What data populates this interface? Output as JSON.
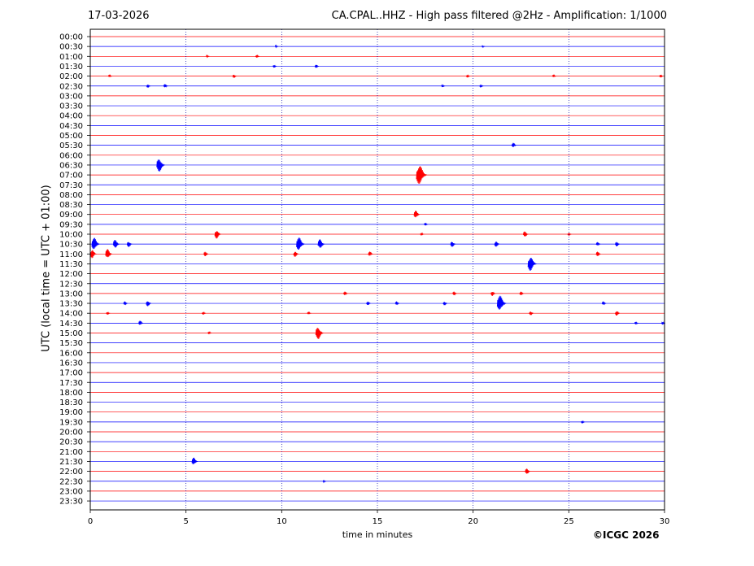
{
  "header": {
    "date": "17-03-2026",
    "title": "CA.CPAL..HHZ - High pass filtered @2Hz - Amplification: 1/1000"
  },
  "footer": {
    "copyright": "©ICGC 2026"
  },
  "chart_data": {
    "type": "line",
    "title": "CA.CPAL..HHZ - High pass filtered @2Hz - Amplification: 1/1000",
    "xlabel": "time in minutes",
    "ylabel": "UTC (local time = UTC + 01:00)",
    "xlim": [
      0,
      30
    ],
    "x_ticks": [
      0,
      5,
      10,
      15,
      20,
      25,
      30
    ],
    "vertical_grid": "dotted blue at each 5 minutes",
    "row_labels": [
      "00:00",
      "00:30",
      "01:00",
      "01:30",
      "02:00",
      "02:30",
      "03:00",
      "03:30",
      "04:00",
      "04:30",
      "05:00",
      "05:30",
      "06:00",
      "06:30",
      "07:00",
      "07:30",
      "08:00",
      "08:30",
      "09:00",
      "09:30",
      "10:00",
      "10:30",
      "11:00",
      "11:30",
      "12:00",
      "12:30",
      "13:00",
      "13:30",
      "14:00",
      "14:30",
      "15:00",
      "15:30",
      "16:00",
      "16:30",
      "17:00",
      "17:30",
      "18:00",
      "18:30",
      "19:00",
      "19:30",
      "20:00",
      "20:30",
      "21:00",
      "21:30",
      "22:00",
      "22:30",
      "23:00",
      "23:30"
    ],
    "colors": {
      "odd_row": "#ff0000",
      "even_row": "#0000ff",
      "grid": "#0000aa"
    },
    "events": [
      {
        "row": 1,
        "minute": 9.7,
        "amp": 0.2
      },
      {
        "row": 1,
        "minute": 20.5,
        "amp": 0.15
      },
      {
        "row": 2,
        "minute": 8.7,
        "amp": 0.3
      },
      {
        "row": 2,
        "minute": 6.1,
        "amp": 0.2
      },
      {
        "row": 3,
        "minute": 9.6,
        "amp": 0.3
      },
      {
        "row": 3,
        "minute": 11.8,
        "amp": 0.35
      },
      {
        "row": 4,
        "minute": 1.0,
        "amp": 0.3
      },
      {
        "row": 4,
        "minute": 7.5,
        "amp": 0.35
      },
      {
        "row": 4,
        "minute": 19.7,
        "amp": 0.3
      },
      {
        "row": 4,
        "minute": 24.2,
        "amp": 0.3
      },
      {
        "row": 4,
        "minute": 29.8,
        "amp": 0.3
      },
      {
        "row": 5,
        "minute": 3.0,
        "amp": 0.35
      },
      {
        "row": 5,
        "minute": 3.9,
        "amp": 0.4
      },
      {
        "row": 5,
        "minute": 18.4,
        "amp": 0.25
      },
      {
        "row": 5,
        "minute": 20.4,
        "amp": 0.3
      },
      {
        "row": 11,
        "minute": 22.1,
        "amp": 0.5
      },
      {
        "row": 13,
        "minute": 3.6,
        "amp": 1.4
      },
      {
        "row": 14,
        "minute": 17.2,
        "amp": 2.0
      },
      {
        "row": 18,
        "minute": 17.0,
        "amp": 0.8
      },
      {
        "row": 19,
        "minute": 17.5,
        "amp": 0.3
      },
      {
        "row": 20,
        "minute": 6.6,
        "amp": 0.9
      },
      {
        "row": 20,
        "minute": 17.3,
        "amp": 0.3
      },
      {
        "row": 20,
        "minute": 22.7,
        "amp": 0.6
      },
      {
        "row": 20,
        "minute": 25.0,
        "amp": 0.3
      },
      {
        "row": 21,
        "minute": 0.2,
        "amp": 1.3
      },
      {
        "row": 21,
        "minute": 1.3,
        "amp": 0.9
      },
      {
        "row": 21,
        "minute": 2.0,
        "amp": 0.6
      },
      {
        "row": 21,
        "minute": 10.9,
        "amp": 1.4
      },
      {
        "row": 21,
        "minute": 12.0,
        "amp": 1.0
      },
      {
        "row": 21,
        "minute": 18.9,
        "amp": 0.6
      },
      {
        "row": 21,
        "minute": 21.2,
        "amp": 0.6
      },
      {
        "row": 21,
        "minute": 26.5,
        "amp": 0.4
      },
      {
        "row": 21,
        "minute": 27.5,
        "amp": 0.5
      },
      {
        "row": 22,
        "minute": 0.1,
        "amp": 0.9
      },
      {
        "row": 22,
        "minute": 0.9,
        "amp": 1.0
      },
      {
        "row": 22,
        "minute": 6.0,
        "amp": 0.5
      },
      {
        "row": 22,
        "minute": 10.7,
        "amp": 0.6
      },
      {
        "row": 22,
        "minute": 14.6,
        "amp": 0.5
      },
      {
        "row": 22,
        "minute": 26.5,
        "amp": 0.5
      },
      {
        "row": 23,
        "minute": 23.0,
        "amp": 1.5
      },
      {
        "row": 26,
        "minute": 13.3,
        "amp": 0.4
      },
      {
        "row": 26,
        "minute": 19.0,
        "amp": 0.4
      },
      {
        "row": 26,
        "minute": 21.0,
        "amp": 0.5
      },
      {
        "row": 26,
        "minute": 22.5,
        "amp": 0.4
      },
      {
        "row": 27,
        "minute": 1.8,
        "amp": 0.4
      },
      {
        "row": 27,
        "minute": 3.0,
        "amp": 0.6
      },
      {
        "row": 27,
        "minute": 14.5,
        "amp": 0.4
      },
      {
        "row": 27,
        "minute": 16.0,
        "amp": 0.4
      },
      {
        "row": 27,
        "minute": 18.5,
        "amp": 0.4
      },
      {
        "row": 27,
        "minute": 21.4,
        "amp": 1.6
      },
      {
        "row": 27,
        "minute": 26.8,
        "amp": 0.4
      },
      {
        "row": 28,
        "minute": 0.9,
        "amp": 0.3
      },
      {
        "row": 28,
        "minute": 5.9,
        "amp": 0.3
      },
      {
        "row": 28,
        "minute": 11.4,
        "amp": 0.3
      },
      {
        "row": 28,
        "minute": 23.0,
        "amp": 0.4
      },
      {
        "row": 28,
        "minute": 27.5,
        "amp": 0.5
      },
      {
        "row": 29,
        "minute": 2.6,
        "amp": 0.5
      },
      {
        "row": 29,
        "minute": 28.5,
        "amp": 0.3
      },
      {
        "row": 29,
        "minute": 29.9,
        "amp": 0.3
      },
      {
        "row": 30,
        "minute": 6.2,
        "amp": 0.3
      },
      {
        "row": 30,
        "minute": 11.9,
        "amp": 1.3
      },
      {
        "row": 39,
        "minute": 25.7,
        "amp": 0.3
      },
      {
        "row": 43,
        "minute": 5.4,
        "amp": 0.8
      },
      {
        "row": 44,
        "minute": 22.8,
        "amp": 0.6
      },
      {
        "row": 45,
        "minute": 12.2,
        "amp": 0.2
      }
    ]
  }
}
